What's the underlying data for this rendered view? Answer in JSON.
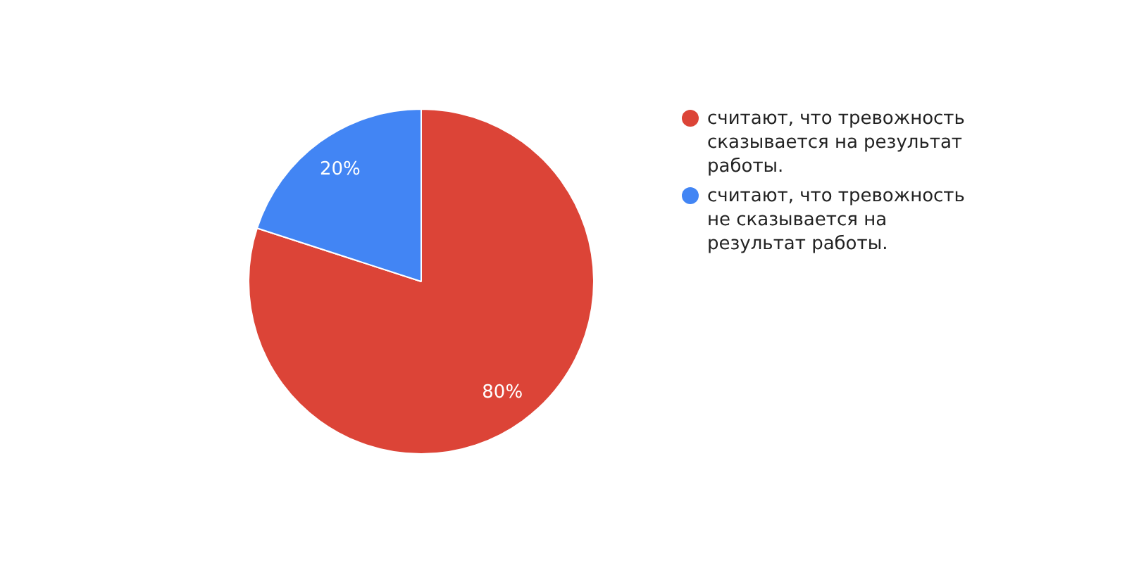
{
  "chart_data": {
    "type": "pie",
    "categories": [
      "считают, что тревожность сказывается на результат работы.",
      "считают, что тревожность не сказывается на результат работы."
    ],
    "values": [
      80,
      20
    ],
    "colors": [
      "#dc4437",
      "#4285f4"
    ],
    "value_labels": [
      "80%",
      "20%"
    ],
    "legend": "right"
  }
}
